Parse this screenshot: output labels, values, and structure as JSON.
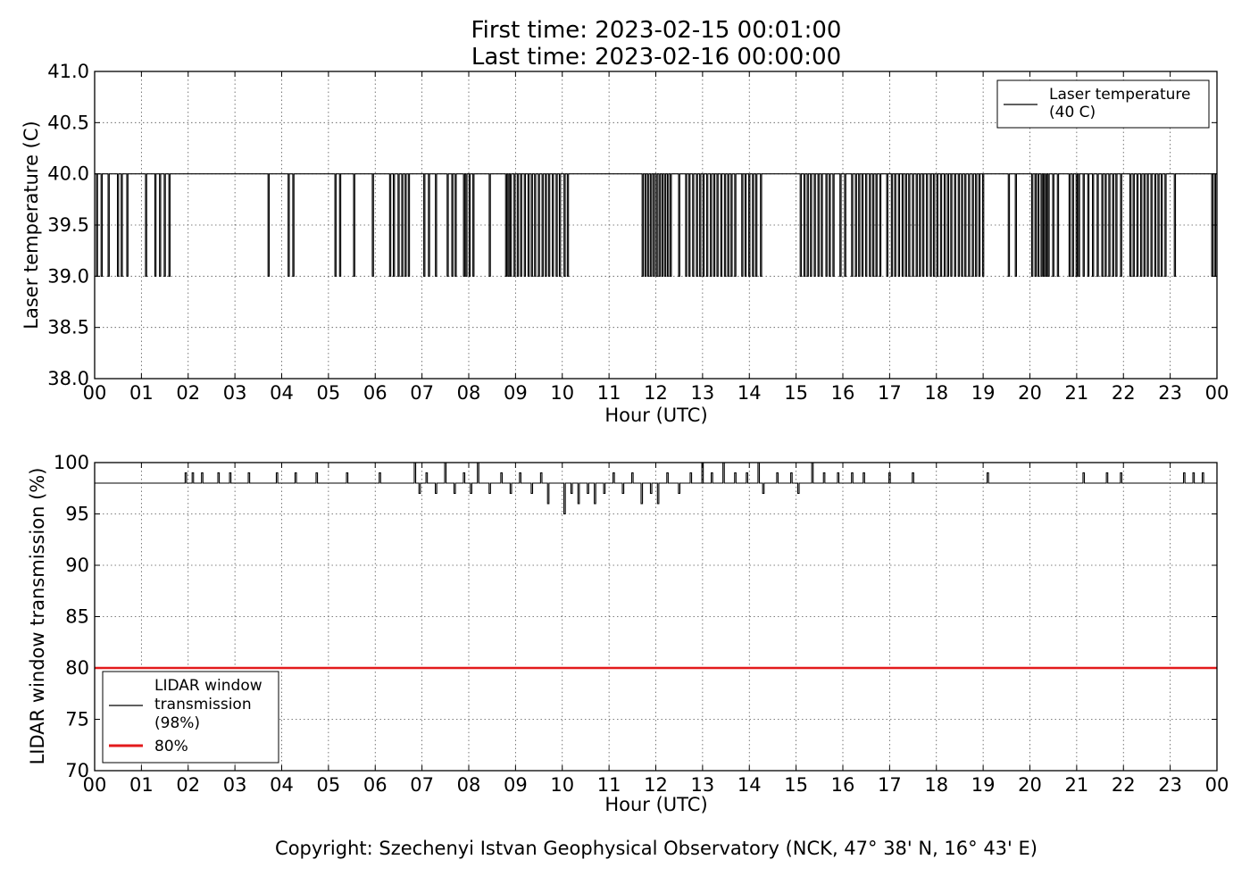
{
  "title": {
    "line1": "First time: 2023-02-15 00:01:00",
    "line2": "Last time: 2023-02-16 00:00:00"
  },
  "copyright": "Copyright: Szechenyi Istvan Geophysical Observatory (NCK, 47° 38' N, 16° 43' E)",
  "chart_data": [
    {
      "type": "line",
      "xlabel": "Hour (UTC)",
      "ylabel": "Laser temperature (C)",
      "xlim": [
        0,
        24
      ],
      "ylim": [
        38.0,
        41.0
      ],
      "x_tick_labels": [
        "00",
        "01",
        "02",
        "03",
        "04",
        "05",
        "06",
        "07",
        "08",
        "09",
        "10",
        "11",
        "12",
        "13",
        "14",
        "15",
        "16",
        "17",
        "18",
        "19",
        "20",
        "21",
        "22",
        "23",
        "00"
      ],
      "y_ticks": [
        "38.0",
        "38.5",
        "39.0",
        "39.5",
        "40.0",
        "40.5",
        "41.0"
      ],
      "grid": true,
      "legend_position": "top-right",
      "series": [
        {
          "name": "Laser temperature\n(40 C)",
          "color": "#000000",
          "baseline": 40.0,
          "dip_value": 39.0,
          "dips_hours": [
            0.05,
            0.15,
            0.3,
            0.5,
            0.58,
            0.7,
            1.1,
            1.3,
            1.4,
            1.5,
            1.6,
            3.72,
            4.15,
            4.25,
            5.15,
            5.25,
            5.55,
            5.95,
            6.32,
            6.4,
            6.5,
            6.58,
            6.65,
            6.72,
            7.05,
            7.15,
            7.3,
            7.55,
            7.65,
            7.72,
            7.9,
            7.95,
            8.02,
            8.1,
            8.45,
            8.8,
            8.85,
            8.9,
            8.98,
            9.05,
            9.12,
            9.2,
            9.28,
            9.35,
            9.42,
            9.5,
            9.58,
            9.65,
            9.72,
            9.8,
            9.88,
            9.95,
            10.05,
            10.12,
            11.72,
            11.78,
            11.84,
            11.9,
            11.96,
            12.02,
            12.08,
            12.14,
            12.2,
            12.26,
            12.32,
            12.5,
            12.65,
            12.72,
            12.8,
            12.88,
            12.95,
            13.02,
            13.1,
            13.18,
            13.25,
            13.32,
            13.4,
            13.48,
            13.55,
            13.62,
            13.7,
            13.85,
            13.92,
            14.0,
            14.08,
            14.15,
            14.25,
            15.1,
            15.18,
            15.25,
            15.32,
            15.4,
            15.48,
            15.55,
            15.65,
            15.72,
            15.8,
            15.95,
            16.05,
            16.2,
            16.28,
            16.35,
            16.42,
            16.5,
            16.58,
            16.65,
            16.72,
            16.8,
            16.95,
            17.05,
            17.12,
            17.2,
            17.28,
            17.35,
            17.42,
            17.5,
            17.58,
            17.65,
            17.72,
            17.8,
            17.88,
            17.95,
            18.02,
            18.1,
            18.18,
            18.25,
            18.32,
            18.4,
            18.48,
            18.55,
            18.62,
            18.7,
            18.78,
            18.85,
            18.92,
            19.0,
            19.55,
            19.7,
            20.05,
            20.12,
            20.18,
            20.25,
            20.3,
            20.35,
            20.4,
            20.5,
            20.6,
            20.85,
            20.92,
            21.0,
            21.05,
            21.15,
            21.25,
            21.35,
            21.45,
            21.55,
            21.62,
            21.7,
            21.78,
            21.85,
            21.95,
            22.15,
            22.22,
            22.3,
            22.38,
            22.45,
            22.52,
            22.6,
            22.68,
            22.75,
            22.82,
            22.9,
            23.1,
            23.9,
            23.96
          ]
        }
      ]
    },
    {
      "type": "line",
      "xlabel": "Hour (UTC)",
      "ylabel": "LIDAR window transmission (%)",
      "xlim": [
        0,
        24
      ],
      "ylim": [
        70,
        100
      ],
      "x_tick_labels": [
        "00",
        "01",
        "02",
        "03",
        "04",
        "05",
        "06",
        "07",
        "08",
        "09",
        "10",
        "11",
        "12",
        "13",
        "14",
        "15",
        "16",
        "17",
        "18",
        "19",
        "20",
        "21",
        "22",
        "23",
        "00"
      ],
      "y_ticks": [
        "70",
        "75",
        "80",
        "85",
        "90",
        "95",
        "100"
      ],
      "grid": true,
      "legend_position": "lower-left",
      "series": [
        {
          "name": "LIDAR window\ntransmission\n(98%)",
          "color": "#000000",
          "baseline": 98,
          "spikes": [
            [
              1.95,
              99
            ],
            [
              2.1,
              99
            ],
            [
              2.3,
              99
            ],
            [
              2.65,
              99
            ],
            [
              2.9,
              99
            ],
            [
              3.3,
              99
            ],
            [
              3.9,
              99
            ],
            [
              4.3,
              99
            ],
            [
              4.75,
              99
            ],
            [
              5.4,
              99
            ],
            [
              6.1,
              99
            ],
            [
              6.85,
              100
            ],
            [
              6.95,
              97
            ],
            [
              7.1,
              99
            ],
            [
              7.3,
              97
            ],
            [
              7.5,
              100
            ],
            [
              7.7,
              97
            ],
            [
              7.9,
              99
            ],
            [
              8.05,
              97
            ],
            [
              8.2,
              100
            ],
            [
              8.45,
              97
            ],
            [
              8.7,
              99
            ],
            [
              8.9,
              97
            ],
            [
              9.1,
              99
            ],
            [
              9.35,
              97
            ],
            [
              9.55,
              99
            ],
            [
              9.7,
              96
            ],
            [
              9.85,
              98
            ],
            [
              10.05,
              95
            ],
            [
              10.2,
              97
            ],
            [
              10.35,
              96
            ],
            [
              10.55,
              97
            ],
            [
              10.7,
              96
            ],
            [
              10.9,
              97
            ],
            [
              11.1,
              99
            ],
            [
              11.3,
              97
            ],
            [
              11.5,
              99
            ],
            [
              11.7,
              96
            ],
            [
              11.9,
              97
            ],
            [
              12.05,
              96
            ],
            [
              12.25,
              99
            ],
            [
              12.5,
              97
            ],
            [
              12.75,
              99
            ],
            [
              13.0,
              100
            ],
            [
              13.2,
              99
            ],
            [
              13.45,
              100
            ],
            [
              13.7,
              99
            ],
            [
              13.95,
              99
            ],
            [
              14.2,
              100
            ],
            [
              14.3,
              97
            ],
            [
              14.6,
              99
            ],
            [
              14.9,
              99
            ],
            [
              15.05,
              97
            ],
            [
              15.35,
              100
            ],
            [
              15.6,
              99
            ],
            [
              15.9,
              99
            ],
            [
              16.2,
              99
            ],
            [
              16.45,
              99
            ],
            [
              17.0,
              99
            ],
            [
              17.5,
              99
            ],
            [
              19.1,
              99
            ],
            [
              21.15,
              99
            ],
            [
              21.65,
              99
            ],
            [
              21.95,
              99
            ],
            [
              23.3,
              99
            ],
            [
              23.5,
              99
            ],
            [
              23.7,
              99
            ]
          ]
        },
        {
          "name": "80%",
          "color": "#e31a1c",
          "values": [
            80,
            80
          ],
          "x": [
            0,
            24
          ]
        }
      ]
    }
  ]
}
